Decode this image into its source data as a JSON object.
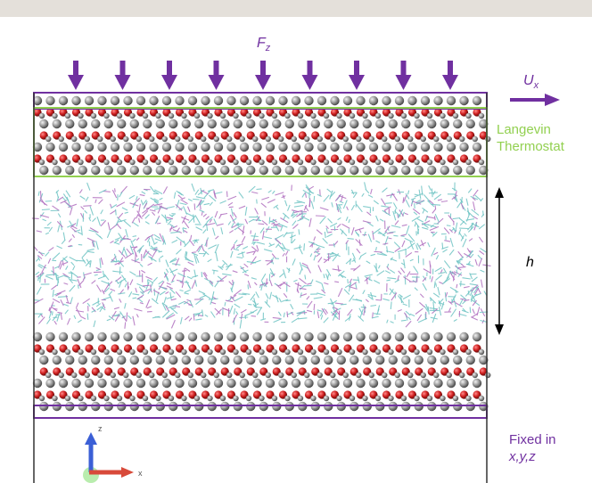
{
  "labels": {
    "force": "F",
    "force_sub": "z",
    "velocity": "U",
    "velocity_sub": "x",
    "thermostat_line1": "Langevin",
    "thermostat_line2": "Thermostat",
    "gap": "h",
    "fixed_line1": "Fixed in",
    "fixed_line2": "x,y,z",
    "axis_z": "z",
    "axis_x": "x"
  },
  "colors": {
    "purple": "#7030a0",
    "green": "#92d050",
    "oxygen": "#cc1f1f",
    "carbon": "#8c8c8c",
    "hydrocarbon_cyan": "#6fc4c4",
    "hydrocarbon_magenta": "#b06fbf",
    "axis_blue": "#3b5fd6",
    "axis_red": "#d84a3a"
  },
  "force_arrow_count": 9
}
